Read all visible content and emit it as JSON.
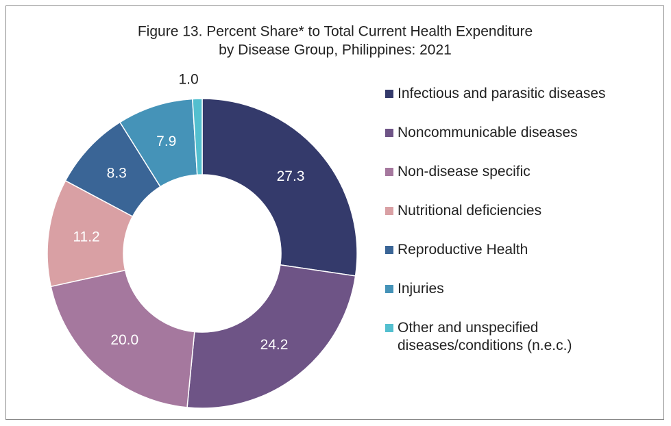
{
  "chart_data": {
    "type": "pie",
    "title": [
      "Figure 13. Percent Share* to Total Current Health Expenditure",
      "by Disease Group, Philippines: 2021"
    ],
    "categories": [
      "Infectious and parasitic diseases",
      "Noncommunicable diseases",
      "Non-disease specific",
      "Nutritional deficiencies",
      "Reproductive Health",
      "Injuries",
      "Other and unspecified diseases/conditions (n.e.c.)"
    ],
    "values": [
      27.3,
      24.2,
      20.0,
      11.2,
      8.3,
      7.9,
      1.0
    ],
    "value_labels": [
      "27.3",
      "24.2",
      "20.0",
      "11.2",
      "8.3",
      "7.9",
      "1.0"
    ],
    "colors": [
      "#343a6b",
      "#6e5486",
      "#a5789e",
      "#d9a0a4",
      "#3a6596",
      "#4593b8",
      "#53bfcf"
    ],
    "legend": "right"
  }
}
